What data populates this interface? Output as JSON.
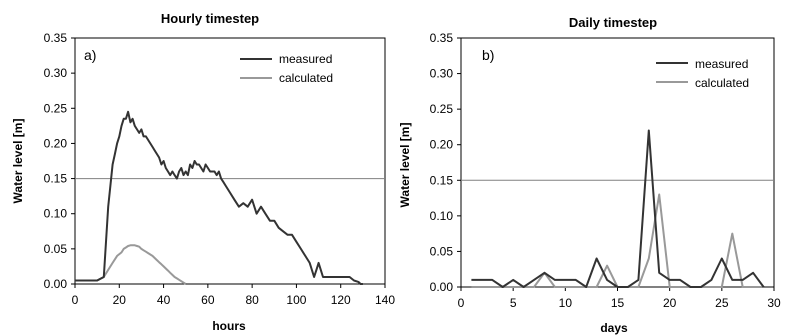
{
  "chart_data": [
    {
      "type": "line",
      "panel_label": "a)",
      "title": "Hourly timestep",
      "xlabel": "hours",
      "ylabel": "Water level [m]",
      "xlim": [
        0,
        140
      ],
      "ylim": [
        0,
        0.35
      ],
      "xticks": [
        "0",
        "20",
        "40",
        "60",
        "80",
        "100",
        "120",
        "140"
      ],
      "yticks": [
        "0.00",
        "0.05",
        "0.10",
        "0.15",
        "0.20",
        "0.25",
        "0.30",
        "0.35"
      ],
      "gridline_y": 0.15,
      "legend_position": "top-right",
      "series": [
        {
          "name": "measured",
          "color": "#333333",
          "x": [
            0,
            10,
            13,
            14,
            15,
            16,
            17,
            18,
            19,
            20,
            21,
            22,
            23,
            23.5,
            24,
            25,
            26,
            27,
            28,
            29,
            30,
            31,
            32,
            33,
            34,
            35,
            36,
            37,
            38,
            39,
            40,
            41,
            42,
            43,
            44,
            45,
            46,
            47,
            48,
            49,
            50,
            51,
            52,
            53,
            54,
            55,
            56,
            57,
            58,
            59,
            60,
            61,
            62,
            63,
            64,
            65,
            66,
            67,
            68,
            70,
            72,
            74,
            76,
            78,
            80,
            82,
            84,
            86,
            88,
            90,
            92,
            94,
            96,
            98,
            100,
            102,
            104,
            106,
            108,
            109,
            110,
            111,
            112,
            114,
            116,
            118,
            120,
            122,
            124,
            126,
            128,
            129,
            130
          ],
          "y": [
            0.005,
            0.005,
            0.01,
            0.06,
            0.11,
            0.14,
            0.17,
            0.185,
            0.2,
            0.21,
            0.225,
            0.235,
            0.235,
            0.24,
            0.245,
            0.23,
            0.235,
            0.225,
            0.22,
            0.215,
            0.22,
            0.21,
            0.21,
            0.205,
            0.2,
            0.195,
            0.19,
            0.185,
            0.18,
            0.17,
            0.175,
            0.165,
            0.16,
            0.155,
            0.16,
            0.155,
            0.15,
            0.16,
            0.165,
            0.155,
            0.16,
            0.155,
            0.17,
            0.165,
            0.175,
            0.17,
            0.17,
            0.165,
            0.16,
            0.17,
            0.165,
            0.16,
            0.16,
            0.16,
            0.155,
            0.16,
            0.15,
            0.145,
            0.14,
            0.13,
            0.12,
            0.11,
            0.115,
            0.11,
            0.12,
            0.1,
            0.11,
            0.1,
            0.09,
            0.09,
            0.08,
            0.075,
            0.07,
            0.07,
            0.06,
            0.05,
            0.04,
            0.03,
            0.01,
            0.02,
            0.03,
            0.02,
            0.01,
            0.01,
            0.01,
            0.01,
            0.01,
            0.01,
            0.01,
            0.005,
            0.003,
            0.0,
            0.0
          ]
        },
        {
          "name": "calculated",
          "color": "#999999",
          "x": [
            0,
            10,
            13,
            15,
            17,
            19,
            21,
            22,
            23,
            24,
            25,
            26,
            27,
            28,
            29,
            30,
            31,
            32,
            33,
            34,
            35,
            36,
            37,
            38,
            39,
            40,
            41,
            42,
            43,
            44,
            45,
            46,
            47,
            48,
            49,
            50
          ],
          "y": [
            0.005,
            0.005,
            0.01,
            0.02,
            0.03,
            0.04,
            0.045,
            0.05,
            0.052,
            0.054,
            0.055,
            0.055,
            0.055,
            0.054,
            0.053,
            0.05,
            0.048,
            0.046,
            0.044,
            0.042,
            0.04,
            0.037,
            0.034,
            0.031,
            0.028,
            0.025,
            0.022,
            0.019,
            0.016,
            0.013,
            0.01,
            0.008,
            0.006,
            0.004,
            0.002,
            0.0
          ]
        }
      ]
    },
    {
      "type": "line",
      "panel_label": "b)",
      "title": "Daily timestep",
      "xlabel": "days",
      "ylabel": "Water level [m]",
      "xlim": [
        0,
        30
      ],
      "ylim": [
        0,
        0.35
      ],
      "xticks": [
        "0",
        "5",
        "10",
        "15",
        "20",
        "25",
        "30"
      ],
      "yticks": [
        "0.00",
        "0.05",
        "0.10",
        "0.15",
        "0.20",
        "0.25",
        "0.30",
        "0.35"
      ],
      "gridline_y": 0.15,
      "legend_position": "top-right",
      "series": [
        {
          "name": "measured",
          "color": "#333333",
          "x": [
            1,
            2,
            3,
            4,
            5,
            6,
            7,
            8,
            9,
            10,
            11,
            12,
            13,
            14,
            15,
            16,
            17,
            18,
            19,
            20,
            21,
            22,
            23,
            24,
            25,
            26,
            27,
            28,
            29
          ],
          "y": [
            0.01,
            0.01,
            0.01,
            0.0,
            0.01,
            0.0,
            0.01,
            0.02,
            0.01,
            0.01,
            0.01,
            0.0,
            0.04,
            0.01,
            0.0,
            0.0,
            0.01,
            0.22,
            0.02,
            0.01,
            0.01,
            0.0,
            0.0,
            0.01,
            0.04,
            0.01,
            0.01,
            0.02,
            0.0
          ]
        },
        {
          "name": "calculated",
          "color": "#999999",
          "x": [
            1,
            2,
            3,
            4,
            5,
            6,
            7,
            8,
            9,
            10,
            11,
            12,
            13,
            14,
            15,
            16,
            17,
            18,
            19,
            20,
            21,
            22,
            23,
            24,
            25,
            26,
            27,
            28,
            29
          ],
          "y": [
            0.0,
            0.0,
            0.0,
            0.0,
            0.0,
            0.0,
            0.0,
            0.02,
            0.0,
            0.0,
            0.0,
            0.0,
            0.0,
            0.03,
            0.0,
            0.0,
            0.0,
            0.04,
            0.13,
            0.0,
            0.0,
            0.0,
            0.0,
            0.0,
            0.0,
            0.075,
            0.0,
            0.0,
            0.0
          ]
        }
      ]
    }
  ]
}
